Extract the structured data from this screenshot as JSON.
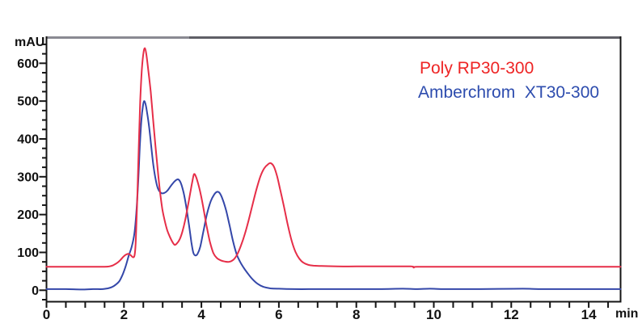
{
  "colors": {
    "background": "#ffffff",
    "axis": "#141414",
    "tick_label": "#121212",
    "top_border_left": "#8a8a92",
    "top_border_right": "#5f5f66",
    "red_trace": "#e62e48",
    "blue_trace": "#3447a9",
    "red_label": "#ee2424",
    "blue_label": "#2d4cae"
  },
  "axis": {
    "y_unit": "mAU",
    "x_unit": "min"
  },
  "legend": {
    "items": [
      {
        "label": "Poly RP30-300",
        "color": "#ee2424"
      },
      {
        "label": "Amberchrom  XT30-300",
        "color": "#2d4cae"
      }
    ]
  },
  "chart_data": {
    "type": "line",
    "title": "",
    "xlabel": "min",
    "ylabel": "mAU",
    "xlim": [
      0,
      14.82
    ],
    "ylim": [
      -29,
      667
    ],
    "grid": false,
    "legend_position": "upper right",
    "x_tick_label_values": [
      0,
      2,
      4,
      6,
      8,
      10,
      12,
      14
    ],
    "x_tick_interval": 0.5,
    "y_tick_label_values": [
      0,
      100,
      200,
      300,
      400,
      500,
      600
    ],
    "y_tick_minor_interval": 25,
    "series": [
      {
        "name": "Poly RP30-300",
        "color": "#e62e48",
        "points": [
          [
            0,
            62
          ],
          [
            0.5,
            62
          ],
          [
            1.0,
            62
          ],
          [
            1.3,
            62
          ],
          [
            1.5,
            62
          ],
          [
            1.62,
            63
          ],
          [
            1.72,
            66
          ],
          [
            1.82,
            72
          ],
          [
            1.9,
            79
          ],
          [
            1.98,
            88
          ],
          [
            2.05,
            94
          ],
          [
            2.12,
            96
          ],
          [
            2.18,
            92
          ],
          [
            2.24,
            87
          ],
          [
            2.28,
            96
          ],
          [
            2.31,
            140
          ],
          [
            2.34,
            230
          ],
          [
            2.38,
            370
          ],
          [
            2.42,
            500
          ],
          [
            2.46,
            580
          ],
          [
            2.5,
            625
          ],
          [
            2.54,
            640
          ],
          [
            2.58,
            622
          ],
          [
            2.63,
            580
          ],
          [
            2.69,
            525
          ],
          [
            2.75,
            455
          ],
          [
            2.81,
            385
          ],
          [
            2.87,
            320
          ],
          [
            2.93,
            262
          ],
          [
            2.99,
            215
          ],
          [
            3.05,
            185
          ],
          [
            3.12,
            158
          ],
          [
            3.19,
            140
          ],
          [
            3.26,
            126
          ],
          [
            3.31,
            120
          ],
          [
            3.37,
            124
          ],
          [
            3.44,
            135
          ],
          [
            3.51,
            155
          ],
          [
            3.58,
            185
          ],
          [
            3.65,
            222
          ],
          [
            3.72,
            262
          ],
          [
            3.77,
            290
          ],
          [
            3.81,
            307
          ],
          [
            3.86,
            300
          ],
          [
            3.92,
            280
          ],
          [
            3.98,
            255
          ],
          [
            4.05,
            218
          ],
          [
            4.13,
            172
          ],
          [
            4.22,
            128
          ],
          [
            4.31,
            98
          ],
          [
            4.4,
            85
          ],
          [
            4.5,
            79
          ],
          [
            4.6,
            76
          ],
          [
            4.71,
            75
          ],
          [
            4.82,
            80
          ],
          [
            4.92,
            94
          ],
          [
            5.02,
            118
          ],
          [
            5.12,
            148
          ],
          [
            5.22,
            185
          ],
          [
            5.32,
            226
          ],
          [
            5.42,
            266
          ],
          [
            5.52,
            300
          ],
          [
            5.62,
            322
          ],
          [
            5.72,
            333
          ],
          [
            5.79,
            336
          ],
          [
            5.87,
            327
          ],
          [
            5.95,
            303
          ],
          [
            6.03,
            268
          ],
          [
            6.13,
            222
          ],
          [
            6.23,
            173
          ],
          [
            6.33,
            131
          ],
          [
            6.43,
            101
          ],
          [
            6.53,
            83
          ],
          [
            6.63,
            73
          ],
          [
            6.76,
            67
          ],
          [
            6.9,
            65
          ],
          [
            7.1,
            64
          ],
          [
            7.5,
            63
          ],
          [
            8.0,
            63
          ],
          [
            8.7,
            63
          ],
          [
            9.4,
            63
          ],
          [
            9.48,
            60
          ],
          [
            9.56,
            62
          ],
          [
            10.2,
            62
          ],
          [
            11.0,
            62
          ],
          [
            12.0,
            62
          ],
          [
            13.0,
            62
          ],
          [
            14.0,
            62
          ],
          [
            14.82,
            62
          ]
        ]
      },
      {
        "name": "Amberchrom XT30-300",
        "color": "#3447a9",
        "points": [
          [
            0,
            3
          ],
          [
            0.5,
            3
          ],
          [
            0.9,
            2
          ],
          [
            1.2,
            3
          ],
          [
            1.45,
            3
          ],
          [
            1.58,
            5
          ],
          [
            1.68,
            8
          ],
          [
            1.78,
            14
          ],
          [
            1.88,
            24
          ],
          [
            1.96,
            40
          ],
          [
            2.04,
            62
          ],
          [
            2.12,
            90
          ],
          [
            2.2,
            115
          ],
          [
            2.27,
            150
          ],
          [
            2.32,
            205
          ],
          [
            2.37,
            290
          ],
          [
            2.41,
            380
          ],
          [
            2.45,
            450
          ],
          [
            2.49,
            487
          ],
          [
            2.52,
            500
          ],
          [
            2.56,
            491
          ],
          [
            2.6,
            468
          ],
          [
            2.65,
            432
          ],
          [
            2.7,
            385
          ],
          [
            2.76,
            330
          ],
          [
            2.82,
            292
          ],
          [
            2.88,
            268
          ],
          [
            2.96,
            257
          ],
          [
            3.04,
            257
          ],
          [
            3.12,
            263
          ],
          [
            3.22,
            277
          ],
          [
            3.32,
            289
          ],
          [
            3.4,
            293
          ],
          [
            3.47,
            283
          ],
          [
            3.54,
            258
          ],
          [
            3.61,
            220
          ],
          [
            3.68,
            172
          ],
          [
            3.74,
            128
          ],
          [
            3.79,
            100
          ],
          [
            3.84,
            92
          ],
          [
            3.9,
            96
          ],
          [
            3.97,
            115
          ],
          [
            4.05,
            155
          ],
          [
            4.14,
            200
          ],
          [
            4.24,
            235
          ],
          [
            4.33,
            253
          ],
          [
            4.4,
            260
          ],
          [
            4.47,
            257
          ],
          [
            4.55,
            240
          ],
          [
            4.64,
            210
          ],
          [
            4.73,
            170
          ],
          [
            4.82,
            128
          ],
          [
            4.91,
            95
          ],
          [
            5.0,
            75
          ],
          [
            5.1,
            58
          ],
          [
            5.2,
            44
          ],
          [
            5.32,
            29
          ],
          [
            5.45,
            17
          ],
          [
            5.6,
            9
          ],
          [
            5.78,
            5
          ],
          [
            6.0,
            4
          ],
          [
            6.4,
            3
          ],
          [
            7.0,
            3
          ],
          [
            7.8,
            3
          ],
          [
            8.6,
            3
          ],
          [
            9.2,
            4
          ],
          [
            9.55,
            3
          ],
          [
            9.9,
            4
          ],
          [
            10.3,
            3
          ],
          [
            11.2,
            3
          ],
          [
            12.3,
            4
          ],
          [
            12.7,
            3
          ],
          [
            13.6,
            3
          ],
          [
            14.82,
            3
          ]
        ]
      }
    ]
  }
}
